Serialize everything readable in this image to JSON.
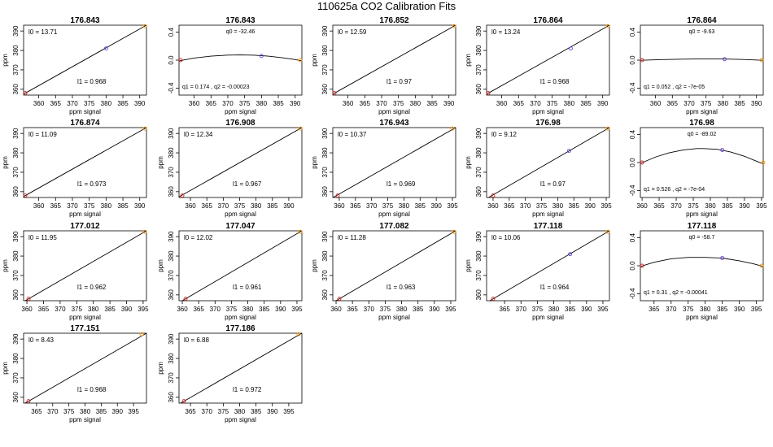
{
  "title": "110625a   CO2 Calibration Fits",
  "chart_data": [
    {
      "type": "line",
      "title": "176.843",
      "xlabel": "ppm signal",
      "ylabel": "ppm",
      "xlim": [
        355.5,
        392
      ],
      "ylim": [
        357,
        393
      ],
      "xticks": [
        "360",
        "365",
        "370",
        "375",
        "380",
        "385",
        "390"
      ],
      "yticks": [
        "360",
        "370",
        "380",
        "390"
      ],
      "points": [
        {
          "x": 356,
          "y": 358,
          "color": "#d62728"
        },
        {
          "x": 380,
          "y": 381,
          "color": "#6a3fd8"
        },
        {
          "x": 391.5,
          "y": 392.5,
          "color": "#ff9900"
        }
      ],
      "line": [
        [
          355.6,
          357.6
        ],
        [
          392,
          393
        ]
      ],
      "annotations": {
        "l0": "l0 =  13.71",
        "l1": "l1 =  0.968"
      }
    },
    {
      "type": "line",
      "title": "176.843",
      "xlabel": "ppm signal",
      "ylabel": "",
      "xlim": [
        355.5,
        392
      ],
      "ylim": [
        -0.5,
        0.5
      ],
      "xticks": [
        "360",
        "365",
        "370",
        "375",
        "380",
        "385",
        "390"
      ],
      "yticks": [
        "-0.4",
        "0.0",
        "0.4"
      ],
      "points": [
        {
          "x": 356,
          "y": 0,
          "color": "#d62728"
        },
        {
          "x": 380,
          "y": 0.06,
          "color": "#6a3fd8"
        },
        {
          "x": 391.5,
          "y": 0,
          "color": "#ff9900"
        }
      ],
      "curve": [
        [
          355.6,
          -0.01
        ],
        [
          360,
          0.03
        ],
        [
          365,
          0.057
        ],
        [
          370,
          0.072
        ],
        [
          373.8,
          0.075
        ],
        [
          378,
          0.071
        ],
        [
          382,
          0.057
        ],
        [
          386,
          0.035
        ],
        [
          390,
          0.008
        ],
        [
          392,
          -0.01
        ]
      ],
      "annotations": {
        "q0": "q0 =  -32.46",
        "q12": "q1 =  0.174  ,  q2 =  -0.00023"
      }
    },
    {
      "type": "line",
      "title": "176.852",
      "xlabel": "ppm signal",
      "ylabel": "ppm",
      "xlim": [
        355.5,
        392
      ],
      "ylim": [
        357,
        393
      ],
      "xticks": [
        "360",
        "365",
        "370",
        "375",
        "380",
        "385",
        "390"
      ],
      "yticks": [
        "360",
        "370",
        "380",
        "390"
      ],
      "points": [
        {
          "x": 356,
          "y": 358,
          "color": "#d62728"
        },
        {
          "x": 391.5,
          "y": 392.5,
          "color": "#ff9900"
        }
      ],
      "line": [
        [
          355.6,
          357.6
        ],
        [
          392,
          393
        ]
      ],
      "annotations": {
        "l0": "l0 =  12.59",
        "l1": "l1 =  0.97"
      }
    },
    {
      "type": "line",
      "title": "176.864",
      "xlabel": "ppm signal",
      "ylabel": "ppm",
      "xlim": [
        355.5,
        392
      ],
      "ylim": [
        357,
        393
      ],
      "xticks": [
        "360",
        "365",
        "370",
        "375",
        "380",
        "385",
        "390"
      ],
      "yticks": [
        "360",
        "370",
        "380",
        "390"
      ],
      "points": [
        {
          "x": 356,
          "y": 358,
          "color": "#d62728"
        },
        {
          "x": 380.5,
          "y": 381,
          "color": "#6a3fd8"
        },
        {
          "x": 391.5,
          "y": 392.5,
          "color": "#ff9900"
        }
      ],
      "line": [
        [
          355.6,
          357.6
        ],
        [
          392,
          393
        ]
      ],
      "annotations": {
        "l0": "l0 =  13.24",
        "l1": "l1 =  0.968"
      }
    },
    {
      "type": "line",
      "title": "176.864",
      "xlabel": "ppm signal",
      "ylabel": "",
      "xlim": [
        355.5,
        392
      ],
      "ylim": [
        -0.5,
        0.5
      ],
      "xticks": [
        "360",
        "365",
        "370",
        "375",
        "380",
        "385",
        "390"
      ],
      "yticks": [
        "-0.4",
        "0.0",
        "0.4"
      ],
      "points": [
        {
          "x": 356,
          "y": 0,
          "color": "#d62728"
        },
        {
          "x": 380.5,
          "y": 0.015,
          "color": "#6a3fd8"
        },
        {
          "x": 391.5,
          "y": 0,
          "color": "#ff9900"
        }
      ],
      "curve": [
        [
          355.6,
          -0.002
        ],
        [
          362,
          0.008
        ],
        [
          368,
          0.014
        ],
        [
          374,
          0.018
        ],
        [
          380,
          0.017
        ],
        [
          386,
          0.01
        ],
        [
          392,
          -0.002
        ]
      ],
      "annotations": {
        "q0": "q0 =  -9.63",
        "q12": "q1 =  0.052  ,  q2 =  -7e-05"
      }
    },
    {
      "type": "line",
      "title": "176.874",
      "xlabel": "ppm signal",
      "ylabel": "ppm",
      "xlim": [
        355.5,
        392
      ],
      "ylim": [
        357,
        393
      ],
      "xticks": [
        "360",
        "365",
        "370",
        "375",
        "380",
        "385",
        "390"
      ],
      "yticks": [
        "360",
        "370",
        "380",
        "390"
      ],
      "points": [
        {
          "x": 356,
          "y": 358,
          "color": "#d62728"
        },
        {
          "x": 391.5,
          "y": 392.5,
          "color": "#ff9900"
        }
      ],
      "line": [
        [
          355.6,
          357.6
        ],
        [
          392,
          393
        ]
      ],
      "annotations": {
        "l0": "l0 =  11.09",
        "l1": "l1 =  0.973"
      }
    },
    {
      "type": "line",
      "title": "176.908",
      "xlabel": "ppm signal",
      "ylabel": "ppm",
      "xlim": [
        356.5,
        394
      ],
      "ylim": [
        357,
        393
      ],
      "xticks": [
        "360",
        "365",
        "370",
        "375",
        "380",
        "385",
        "390"
      ],
      "yticks": [
        "360",
        "370",
        "380",
        "390"
      ],
      "points": [
        {
          "x": 357.5,
          "y": 358,
          "color": "#d62728"
        },
        {
          "x": 393.5,
          "y": 392.5,
          "color": "#ff9900"
        }
      ],
      "line": [
        [
          356.6,
          357.4
        ],
        [
          394,
          393
        ]
      ],
      "annotations": {
        "l0": "l0 =  12.34",
        "l1": "l1 =  0.967"
      }
    },
    {
      "type": "line",
      "title": "176.943",
      "xlabel": "ppm signal",
      "ylabel": "ppm",
      "xlim": [
        358,
        396
      ],
      "ylim": [
        357,
        393
      ],
      "xticks": [
        "360",
        "365",
        "370",
        "375",
        "380",
        "385",
        "390",
        "395"
      ],
      "yticks": [
        "360",
        "370",
        "380",
        "390"
      ],
      "points": [
        {
          "x": 359.5,
          "y": 358,
          "color": "#d62728"
        },
        {
          "x": 395,
          "y": 392.5,
          "color": "#ff9900"
        }
      ],
      "line": [
        [
          358.1,
          357
        ],
        [
          396,
          393
        ]
      ],
      "annotations": {
        "l0": "l0 =  10.37",
        "l1": "l1 =  0.969"
      }
    },
    {
      "type": "line",
      "title": "176.98",
      "xlabel": "ppm signal",
      "ylabel": "ppm",
      "xlim": [
        358,
        396
      ],
      "ylim": [
        357,
        393
      ],
      "xticks": [
        "360",
        "365",
        "370",
        "375",
        "380",
        "385",
        "390",
        "395"
      ],
      "yticks": [
        "360",
        "370",
        "380",
        "390"
      ],
      "points": [
        {
          "x": 360,
          "y": 358,
          "color": "#d62728"
        },
        {
          "x": 383.5,
          "y": 381,
          "color": "#6a3fd8"
        },
        {
          "x": 395.5,
          "y": 392.5,
          "color": "#ff9900"
        }
      ],
      "line": [
        [
          358.6,
          357
        ],
        [
          396,
          393
        ]
      ],
      "annotations": {
        "l0": "l0 =  9.12",
        "l1": "l1 =  0.97"
      }
    },
    {
      "type": "line",
      "title": "176.98",
      "xlabel": "ppm signal",
      "ylabel": "",
      "xlim": [
        359.5,
        395.5
      ],
      "ylim": [
        -0.5,
        0.5
      ],
      "xticks": [
        "360",
        "365",
        "370",
        "375",
        "380",
        "385",
        "390",
        "395"
      ],
      "yticks": [
        "-0.4",
        "0.0",
        "0.4"
      ],
      "points": [
        {
          "x": 360,
          "y": 0,
          "color": "#d62728"
        },
        {
          "x": 383.5,
          "y": 0.18,
          "color": "#6a3fd8"
        },
        {
          "x": 395.5,
          "y": 0,
          "color": "#ff9900"
        }
      ],
      "curve": [
        [
          359.6,
          -0.01
        ],
        [
          364,
          0.08
        ],
        [
          368,
          0.14
        ],
        [
          372,
          0.18
        ],
        [
          376,
          0.2
        ],
        [
          378,
          0.2
        ],
        [
          382,
          0.19
        ],
        [
          386,
          0.15
        ],
        [
          390,
          0.09
        ],
        [
          393,
          0.03
        ],
        [
          395.5,
          -0.02
        ]
      ],
      "annotations": {
        "q0": "q0 =  -89.02",
        "q12": "q1 =  0.526  ,  q2 =  -7e-04"
      }
    },
    {
      "type": "line",
      "title": "177.012",
      "xlabel": "ppm signal",
      "ylabel": "ppm",
      "xlim": [
        359,
        396
      ],
      "ylim": [
        357,
        393
      ],
      "xticks": [
        "360",
        "365",
        "370",
        "375",
        "380",
        "385",
        "390",
        "395"
      ],
      "yticks": [
        "360",
        "370",
        "380",
        "390"
      ],
      "points": [
        {
          "x": 360.5,
          "y": 358,
          "color": "#d62728"
        },
        {
          "x": 395.5,
          "y": 392.5,
          "color": "#ff9900"
        }
      ],
      "line": [
        [
          359.1,
          356.6
        ],
        [
          396,
          393
        ]
      ],
      "annotations": {
        "l0": "l0 =  11.95",
        "l1": "l1 =  0.962"
      }
    },
    {
      "type": "line",
      "title": "177.047",
      "xlabel": "ppm signal",
      "ylabel": "ppm",
      "xlim": [
        359,
        396.5
      ],
      "ylim": [
        357,
        393
      ],
      "xticks": [
        "360",
        "365",
        "370",
        "375",
        "380",
        "385",
        "390",
        "395"
      ],
      "yticks": [
        "360",
        "370",
        "380",
        "390"
      ],
      "points": [
        {
          "x": 361,
          "y": 358,
          "color": "#d62728"
        },
        {
          "x": 396,
          "y": 392.5,
          "color": "#ff9900"
        }
      ],
      "line": [
        [
          359.6,
          356.6
        ],
        [
          396.5,
          393
        ]
      ],
      "annotations": {
        "l0": "l0 =  12.02",
        "l1": "l1 =  0.961"
      }
    },
    {
      "type": "line",
      "title": "177.082",
      "xlabel": "ppm signal",
      "ylabel": "ppm",
      "xlim": [
        359,
        396.5
      ],
      "ylim": [
        357,
        393
      ],
      "xticks": [
        "360",
        "365",
        "370",
        "375",
        "380",
        "385",
        "390",
        "395"
      ],
      "yticks": [
        "360",
        "370",
        "380",
        "390"
      ],
      "points": [
        {
          "x": 361,
          "y": 358,
          "color": "#d62728"
        },
        {
          "x": 396,
          "y": 392.5,
          "color": "#ff9900"
        }
      ],
      "line": [
        [
          359.6,
          356.6
        ],
        [
          396.5,
          393
        ]
      ],
      "annotations": {
        "l0": "l0 =  11.28",
        "l1": "l1 =  0.963"
      }
    },
    {
      "type": "line",
      "title": "177.118",
      "xlabel": "ppm signal",
      "ylabel": "ppm",
      "xlim": [
        359.5,
        397
      ],
      "ylim": [
        357,
        393
      ],
      "xticks": [
        "365",
        "370",
        "375",
        "380",
        "385",
        "390",
        "395"
      ],
      "yticks": [
        "360",
        "370",
        "380",
        "390"
      ],
      "points": [
        {
          "x": 361.5,
          "y": 358,
          "color": "#d62728"
        },
        {
          "x": 385,
          "y": 381,
          "color": "#6a3fd8"
        },
        {
          "x": 396.5,
          "y": 392.5,
          "color": "#ff9900"
        }
      ],
      "line": [
        [
          360.1,
          356.6
        ],
        [
          397,
          393
        ]
      ],
      "annotations": {
        "l0": "l0 =  10.06",
        "l1": "l1 =  0.964"
      }
    },
    {
      "type": "line",
      "title": "177.118",
      "xlabel": "ppm signal",
      "ylabel": "",
      "xlim": [
        361,
        397
      ],
      "ylim": [
        -0.5,
        0.5
      ],
      "xticks": [
        "365",
        "370",
        "375",
        "380",
        "385",
        "390",
        "395"
      ],
      "yticks": [
        "-0.4",
        "0.0",
        "0.4"
      ],
      "points": [
        {
          "x": 361.5,
          "y": 0,
          "color": "#d62728"
        },
        {
          "x": 385,
          "y": 0.11,
          "color": "#6a3fd8"
        },
        {
          "x": 396.5,
          "y": 0,
          "color": "#ff9900"
        }
      ],
      "curve": [
        [
          361.1,
          -0.01
        ],
        [
          365,
          0.05
        ],
        [
          370,
          0.1
        ],
        [
          375,
          0.12
        ],
        [
          380,
          0.12
        ],
        [
          385,
          0.11
        ],
        [
          390,
          0.07
        ],
        [
          394,
          0.03
        ],
        [
          397,
          -0.01
        ]
      ],
      "annotations": {
        "q0": "q0 =  -58.7",
        "q12": "q1 =  0.31  ,  q2 =  -0.00041"
      }
    },
    {
      "type": "line",
      "title": "177.151",
      "xlabel": "ppm signal",
      "ylabel": "ppm",
      "xlim": [
        361,
        399
      ],
      "ylim": [
        357,
        393
      ],
      "xticks": [
        "365",
        "370",
        "375",
        "380",
        "385",
        "390",
        "395"
      ],
      "yticks": [
        "360",
        "370",
        "380",
        "390"
      ],
      "points": [
        {
          "x": 362.5,
          "y": 358,
          "color": "#d62728"
        },
        {
          "x": 397.5,
          "y": 392.5,
          "color": "#ff9900"
        }
      ],
      "line": [
        [
          361.1,
          356.6
        ],
        [
          399,
          393
        ]
      ],
      "annotations": {
        "l0": "l0 =  8.43",
        "l1": "l1 =  0.968"
      }
    },
    {
      "type": "line",
      "title": "177.186",
      "xlabel": "ppm signal",
      "ylabel": "ppm",
      "xlim": [
        361.5,
        399
      ],
      "ylim": [
        357,
        393
      ],
      "xticks": [
        "365",
        "370",
        "375",
        "380",
        "385",
        "390",
        "395"
      ],
      "yticks": [
        "360",
        "370",
        "380",
        "390"
      ],
      "points": [
        {
          "x": 363,
          "y": 358,
          "color": "#d62728"
        },
        {
          "x": 398,
          "y": 392.5,
          "color": "#ff9900"
        }
      ],
      "line": [
        [
          361.6,
          356.6
        ],
        [
          399,
          393
        ]
      ],
      "annotations": {
        "l0": "l0 =  6.88",
        "l1": "l1 =  0.972"
      }
    }
  ]
}
